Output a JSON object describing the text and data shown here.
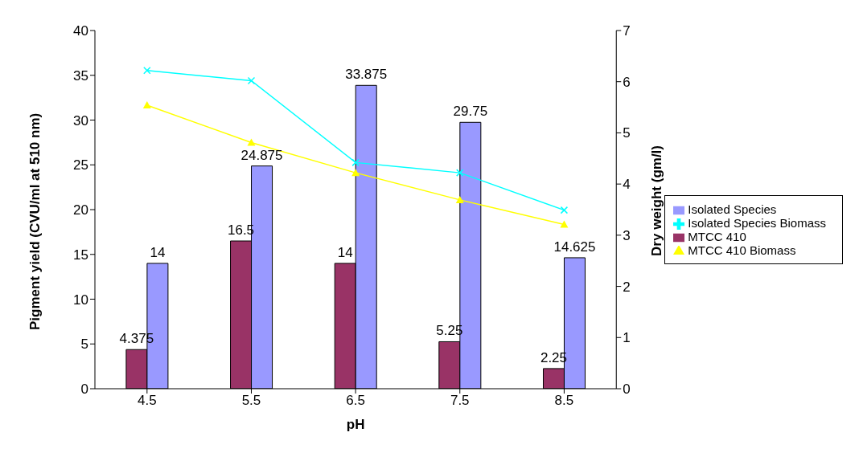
{
  "chart_data": {
    "type": "bar",
    "xlabel": "pH",
    "ylabel": "Pigment yield (CVU/ml at 510 nm)",
    "y2label": "Dry weight (gm/l)",
    "categories": [
      "4.5",
      "5.5",
      "6.5",
      "7.5",
      "8.5"
    ],
    "series": [
      {
        "name": "MTCC 410",
        "color": "#993366",
        "values": [
          4.375,
          16.5,
          14,
          5.25,
          2.25
        ],
        "value_labels": [
          "4.375",
          "16.5",
          "14",
          "5.25",
          "2.25"
        ]
      },
      {
        "name": "Isolated Species",
        "color": "#9999ff",
        "values": [
          14,
          24.875,
          33.875,
          29.75,
          14.625
        ],
        "value_labels": [
          "14",
          "24.875",
          "33.875",
          "29.75",
          "14.625"
        ]
      },
      {
        "name": "MTCC 410 Biomass",
        "type": "line",
        "axis": "y2",
        "color": "#ffff00",
        "marker": "triangle",
        "values": [
          5.54,
          4.81,
          4.22,
          3.69,
          3.21
        ]
      },
      {
        "name": "Isolated Species Biomass",
        "type": "line",
        "axis": "y2",
        "color": "#00ffff",
        "marker": "cross",
        "values": [
          6.22,
          6.02,
          4.42,
          4.22,
          3.49
        ]
      }
    ],
    "ylim": [
      0,
      40
    ],
    "yticks": [
      0,
      5,
      10,
      15,
      20,
      25,
      30,
      35,
      40
    ],
    "y2lim": [
      0,
      7
    ],
    "y2ticks": [
      0,
      1,
      2,
      3,
      4,
      5,
      6,
      7
    ],
    "legend": "right"
  }
}
